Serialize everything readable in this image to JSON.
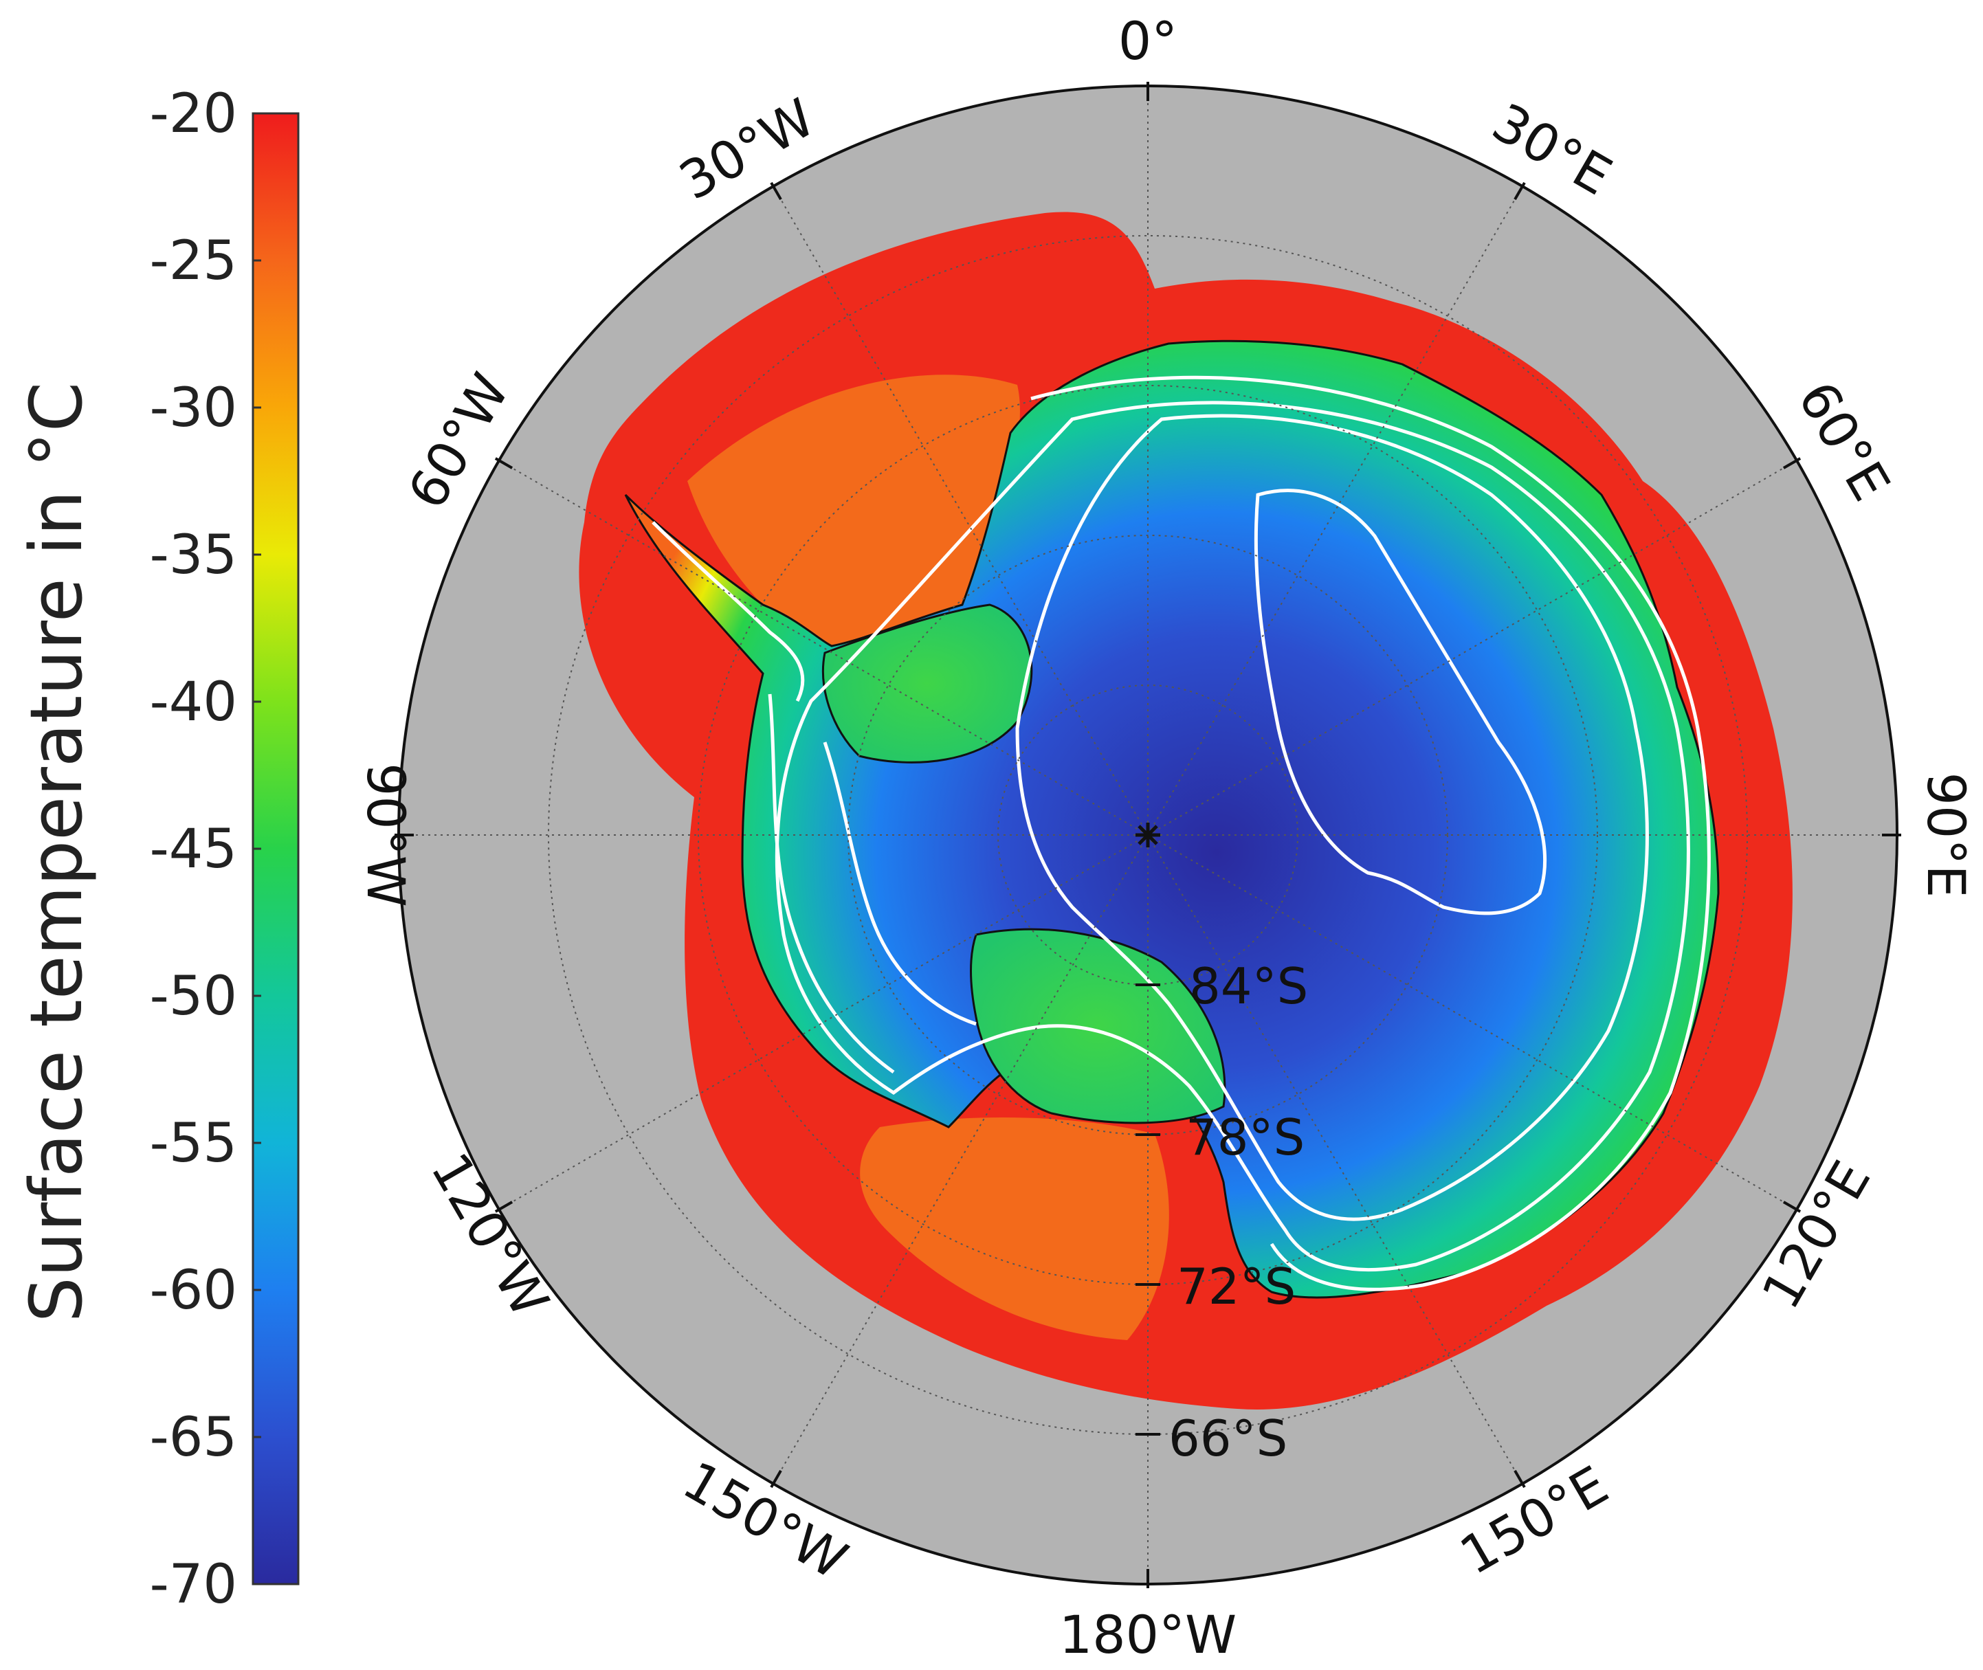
{
  "colorbar": {
    "title": "Surface temperature in °C",
    "min": -70,
    "max": -20,
    "ticks": [
      "-20",
      "-25",
      "-30",
      "-35",
      "-40",
      "-45",
      "-50",
      "-55",
      "-60",
      "-65",
      "-70"
    ],
    "colors": [
      "#2a2a9e",
      "#2c4fcf",
      "#1e7ff0",
      "#11b4d8",
      "#13c79a",
      "#28d24a",
      "#7ee21b",
      "#e9ea06",
      "#f9a708",
      "#f5661a",
      "#ef1c1c"
    ]
  },
  "map": {
    "projection": "south polar stereographic",
    "background_color": "#b3b3b3",
    "ocean_sea_ice_color": "#ee2a1c",
    "longitude_labels": {
      "lon_0": "0°",
      "lon_30e": "30°E",
      "lon_60e": "60°E",
      "lon_90e": "90°E",
      "lon_120e": "120°E",
      "lon_150e": "150°E",
      "lon_180": "180°W",
      "lon_150w": "150°W",
      "lon_120w": "120°W",
      "lon_90w": "90°W",
      "lon_60w": "60°W",
      "lon_30w": "30°W"
    },
    "latitude_labels": {
      "lat_84": "84°S",
      "lat_78": "78°S",
      "lat_72": "72°S",
      "lat_66": "66°S"
    }
  }
}
